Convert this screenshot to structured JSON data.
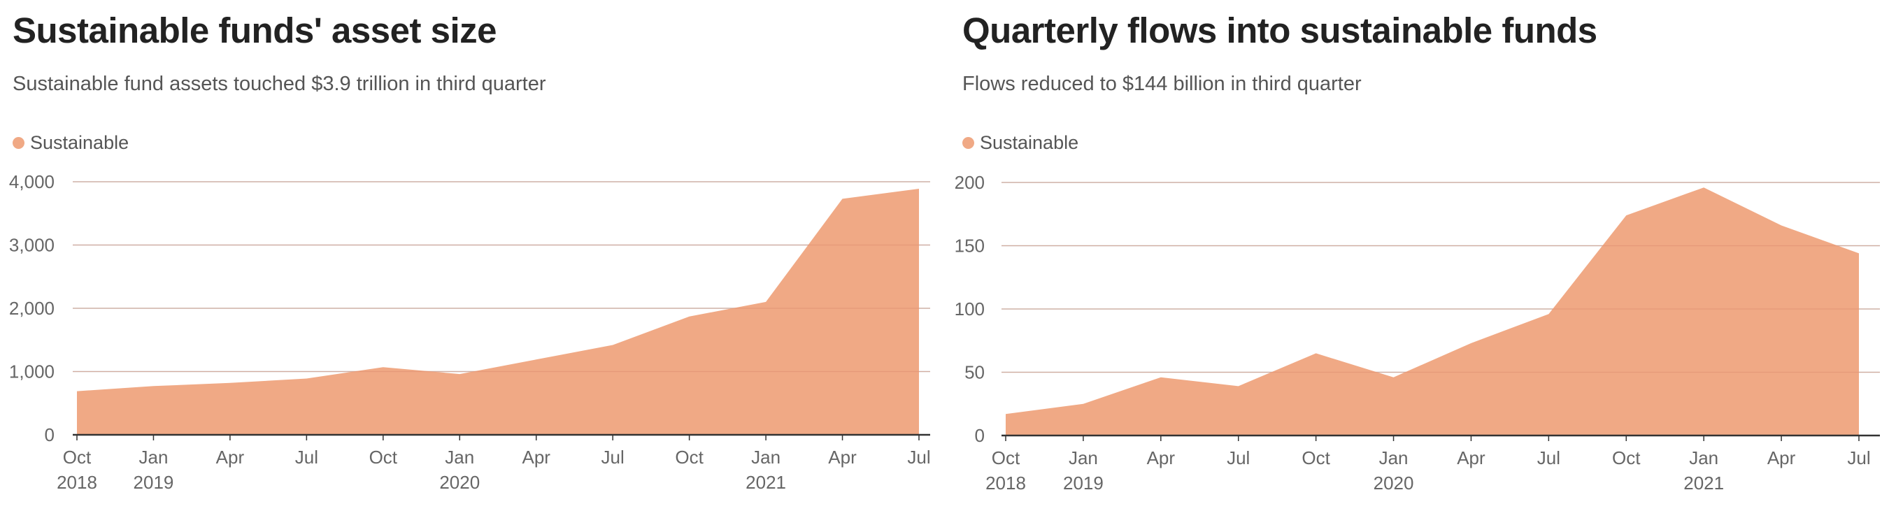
{
  "colors": {
    "area": "#f0a985",
    "grid": "#cccccc",
    "axis": "#333333"
  },
  "chart_data": [
    {
      "type": "area",
      "title": "Sustainable funds' asset size",
      "subtitle": "Sustainable fund assets touched $3.9 trillion in third quarter",
      "legend": {
        "label": "Sustainable",
        "placement": "top-left"
      },
      "ylim": [
        0,
        4000
      ],
      "yticks": [
        {
          "value": 0,
          "label": "0"
        },
        {
          "value": 1000,
          "label": "1,000"
        },
        {
          "value": 2000,
          "label": "2,000"
        },
        {
          "value": 3000,
          "label": "3,000"
        },
        {
          "value": 4000,
          "label": "4,000"
        }
      ],
      "xticks": [
        {
          "label": "Oct",
          "year": "2018"
        },
        {
          "label": "Jan",
          "year": "2019"
        },
        {
          "label": "Apr",
          "year": ""
        },
        {
          "label": "Jul",
          "year": ""
        },
        {
          "label": "Oct",
          "year": ""
        },
        {
          "label": "Jan",
          "year": "2020"
        },
        {
          "label": "Apr",
          "year": ""
        },
        {
          "label": "Jul",
          "year": ""
        },
        {
          "label": "Oct",
          "year": ""
        },
        {
          "label": "Jan",
          "year": "2021"
        },
        {
          "label": "Apr",
          "year": ""
        },
        {
          "label": "Jul",
          "year": ""
        }
      ],
      "series": [
        {
          "name": "Sustainable",
          "values": [
            690,
            770,
            820,
            890,
            1070,
            960,
            1190,
            1420,
            1870,
            2100,
            3730,
            3890
          ]
        }
      ],
      "grid": true
    },
    {
      "type": "area",
      "title": "Quarterly flows into sustainable funds",
      "subtitle": "Flows reduced to $144 billion in third quarter",
      "legend": {
        "label": "Sustainable",
        "placement": "top-left"
      },
      "ylim": [
        0,
        200
      ],
      "yticks": [
        {
          "value": 0,
          "label": "0"
        },
        {
          "value": 50,
          "label": "50"
        },
        {
          "value": 100,
          "label": "100"
        },
        {
          "value": 150,
          "label": "150"
        },
        {
          "value": 200,
          "label": "200"
        }
      ],
      "xticks": [
        {
          "label": "Oct",
          "year": "2018"
        },
        {
          "label": "Jan",
          "year": "2019"
        },
        {
          "label": "Apr",
          "year": ""
        },
        {
          "label": "Jul",
          "year": ""
        },
        {
          "label": "Oct",
          "year": ""
        },
        {
          "label": "Jan",
          "year": "2020"
        },
        {
          "label": "Apr",
          "year": ""
        },
        {
          "label": "Jul",
          "year": ""
        },
        {
          "label": "Oct",
          "year": ""
        },
        {
          "label": "Jan",
          "year": "2021"
        },
        {
          "label": "Apr",
          "year": ""
        },
        {
          "label": "Jul",
          "year": ""
        }
      ],
      "series": [
        {
          "name": "Sustainable",
          "values": [
            17,
            25,
            46,
            39,
            65,
            46,
            73,
            96,
            174,
            196,
            166,
            144
          ]
        }
      ],
      "grid": true
    }
  ]
}
